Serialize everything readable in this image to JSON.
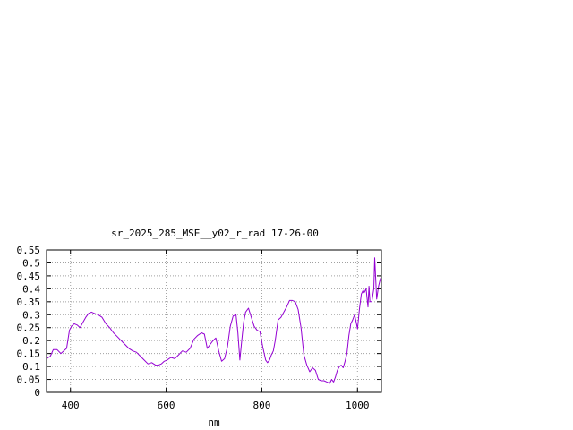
{
  "chart_data": {
    "type": "line",
    "title": "sr_2025_285_MSE__y02_r_rad 17-26-00",
    "xlabel": "nm",
    "ylabel": "",
    "xlim": [
      350,
      1050
    ],
    "ylim": [
      0,
      0.55
    ],
    "xticks": [
      400,
      600,
      800,
      1000
    ],
    "xtick_labels": [
      "400",
      "600",
      "800",
      "1000"
    ],
    "yticks": [
      0,
      0.05,
      0.1,
      0.15,
      0.2,
      0.25,
      0.3,
      0.35,
      0.4,
      0.45,
      0.5,
      0.55
    ],
    "ytick_labels": [
      "0",
      "0.05",
      "0.1",
      "0.15",
      "0.2",
      "0.25",
      "0.3",
      "0.35",
      "0.4",
      "0.45",
      "0.5",
      "0.55"
    ],
    "grid": true,
    "line_color": "#9400d3",
    "series": [
      {
        "x": [
          350,
          358,
          364,
          372,
          380,
          386,
          392,
          398,
          402,
          408,
          414,
          420,
          426,
          432,
          438,
          444,
          450,
          458,
          466,
          474,
          482,
          490,
          498,
          506,
          514,
          522,
          530,
          538,
          546,
          554,
          562,
          570,
          578,
          584,
          590,
          596,
          602,
          610,
          618,
          626,
          634,
          642,
          650,
          658,
          666,
          674,
          680,
          686,
          692,
          698,
          704,
          710,
          716,
          722,
          728,
          734,
          740,
          746,
          750,
          754,
          758,
          762,
          766,
          772,
          778,
          784,
          790,
          796,
          802,
          808,
          812,
          816,
          820,
          824,
          828,
          834,
          840,
          846,
          852,
          858,
          864,
          870,
          876,
          882,
          888,
          894,
          900,
          906,
          912,
          918,
          924,
          930,
          936,
          942,
          946,
          950,
          954,
          958,
          962,
          966,
          970,
          974,
          978,
          982,
          986,
          990,
          994,
          998,
          1000,
          1004,
          1008,
          1012,
          1014,
          1018,
          1022,
          1024,
          1026,
          1030,
          1034,
          1036,
          1040,
          1044,
          1048,
          1050
        ],
        "y": [
          0.13,
          0.14,
          0.165,
          0.165,
          0.15,
          0.16,
          0.17,
          0.24,
          0.255,
          0.265,
          0.26,
          0.25,
          0.27,
          0.29,
          0.305,
          0.31,
          0.305,
          0.3,
          0.29,
          0.265,
          0.25,
          0.23,
          0.215,
          0.2,
          0.185,
          0.17,
          0.16,
          0.155,
          0.14,
          0.125,
          0.11,
          0.115,
          0.105,
          0.105,
          0.11,
          0.12,
          0.125,
          0.135,
          0.13,
          0.145,
          0.16,
          0.155,
          0.17,
          0.205,
          0.22,
          0.23,
          0.225,
          0.17,
          0.185,
          0.2,
          0.21,
          0.16,
          0.12,
          0.13,
          0.175,
          0.255,
          0.295,
          0.3,
          0.23,
          0.125,
          0.2,
          0.27,
          0.31,
          0.325,
          0.29,
          0.255,
          0.24,
          0.235,
          0.175,
          0.125,
          0.115,
          0.125,
          0.145,
          0.16,
          0.2,
          0.28,
          0.29,
          0.31,
          0.33,
          0.355,
          0.355,
          0.35,
          0.32,
          0.25,
          0.145,
          0.105,
          0.08,
          0.095,
          0.085,
          0.05,
          0.045,
          0.045,
          0.04,
          0.035,
          0.05,
          0.04,
          0.06,
          0.085,
          0.1,
          0.105,
          0.095,
          0.12,
          0.15,
          0.22,
          0.265,
          0.28,
          0.3,
          0.265,
          0.245,
          0.32,
          0.38,
          0.395,
          0.385,
          0.4,
          0.33,
          0.41,
          0.35,
          0.35,
          0.4,
          0.52,
          0.36,
          0.41,
          0.44,
          0.42
        ]
      }
    ]
  }
}
